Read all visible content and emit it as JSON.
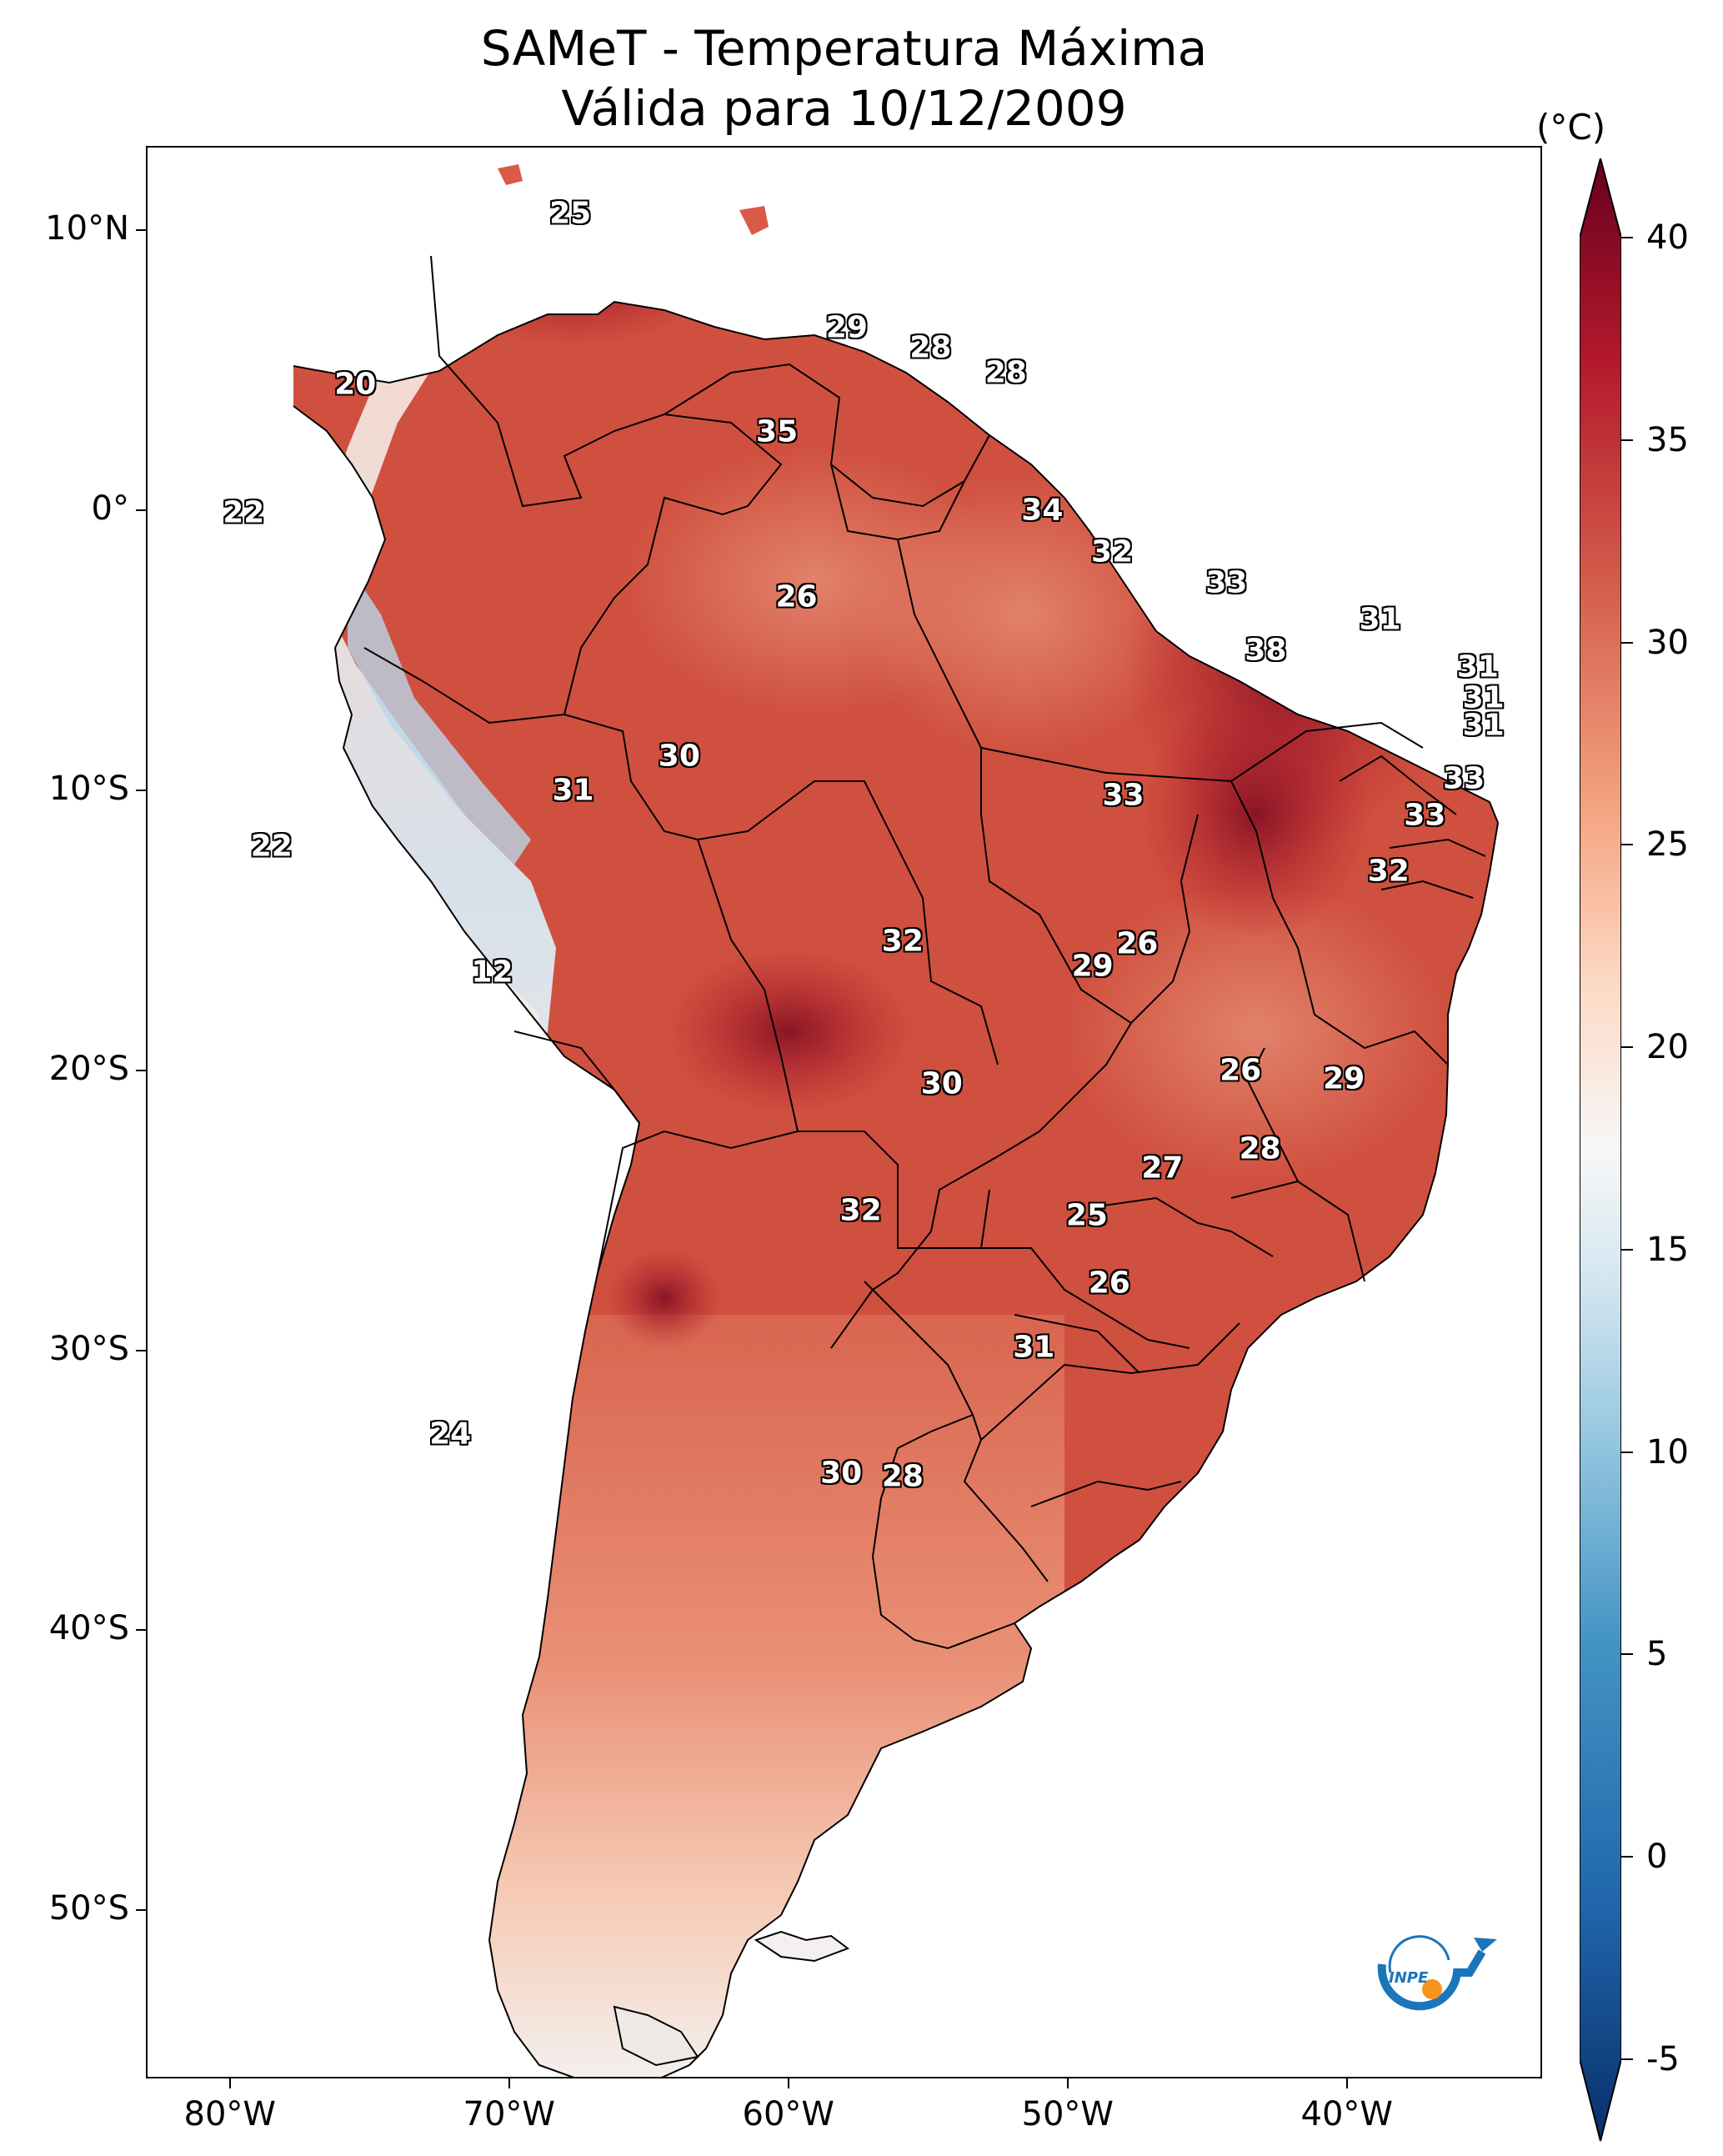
{
  "title": {
    "line1": "SAMeT - Temperatura Máxima",
    "line2": "Válida para 10/12/2009"
  },
  "axes": {
    "longitude_labels": [
      "80°W",
      "70°W",
      "60°W",
      "50°W",
      "40°W"
    ],
    "latitude_labels": [
      "10°N",
      "0°",
      "10°S",
      "20°S",
      "30°S",
      "40°S",
      "50°S"
    ],
    "longitude_values": [
      -80,
      -70,
      -60,
      -50,
      -40
    ],
    "latitude_values": [
      10,
      0,
      -10,
      -20,
      -30,
      -40,
      -50
    ],
    "lon_range": [
      -83,
      -33
    ],
    "lat_range": [
      -56,
      13
    ]
  },
  "colorbar": {
    "unit": "(°C)",
    "labels": [
      "40",
      "35",
      "30",
      "25",
      "20",
      "15",
      "10",
      "5",
      "0",
      "-5"
    ],
    "values": [
      40,
      35,
      30,
      25,
      20,
      15,
      10,
      5,
      0,
      -5
    ],
    "range": [
      -5,
      40
    ],
    "colors": [
      "#08306b",
      "#2166ac",
      "#4393c3",
      "#92c5de",
      "#d1e5f0",
      "#f7f7f7",
      "#fddbc7",
      "#f4a582",
      "#d6604d",
      "#b2182b",
      "#67001f"
    ]
  },
  "contour_labels": [
    {
      "text": "25",
      "lon": -67.8,
      "lat": 10.6
    },
    {
      "text": "29",
      "lon": -57.9,
      "lat": 6.5
    },
    {
      "text": "28",
      "lon": -54.9,
      "lat": 5.8
    },
    {
      "text": "28",
      "lon": -52.2,
      "lat": 4.9
    },
    {
      "text": "20",
      "lon": -75.5,
      "lat": 4.5
    },
    {
      "text": "35",
      "lon": -60.4,
      "lat": 2.8
    },
    {
      "text": "34",
      "lon": -50.9,
      "lat": 0.0
    },
    {
      "text": "22",
      "lon": -79.5,
      "lat": -0.1
    },
    {
      "text": "32",
      "lon": -48.4,
      "lat": -1.5
    },
    {
      "text": "33",
      "lon": -44.3,
      "lat": -2.6
    },
    {
      "text": "26",
      "lon": -59.7,
      "lat": -3.1
    },
    {
      "text": "31",
      "lon": -38.8,
      "lat": -3.9
    },
    {
      "text": "38",
      "lon": -42.9,
      "lat": -5.0
    },
    {
      "text": "31",
      "lon": -35.3,
      "lat": -5.6
    },
    {
      "text": "31",
      "lon": -35.1,
      "lat": -6.7
    },
    {
      "text": "31",
      "lon": -35.1,
      "lat": -7.7
    },
    {
      "text": "30",
      "lon": -63.9,
      "lat": -8.8
    },
    {
      "text": "33",
      "lon": -35.8,
      "lat": -9.6
    },
    {
      "text": "31",
      "lon": -67.7,
      "lat": -10.0
    },
    {
      "text": "33",
      "lon": -48.0,
      "lat": -10.2
    },
    {
      "text": "33",
      "lon": -37.2,
      "lat": -10.9
    },
    {
      "text": "22",
      "lon": -78.5,
      "lat": -12.0
    },
    {
      "text": "32",
      "lon": -38.5,
      "lat": -12.9
    },
    {
      "text": "26",
      "lon": -47.5,
      "lat": -15.5
    },
    {
      "text": "32",
      "lon": -55.9,
      "lat": -15.4
    },
    {
      "text": "29",
      "lon": -49.1,
      "lat": -16.3
    },
    {
      "text": "12",
      "lon": -70.6,
      "lat": -16.5
    },
    {
      "text": "26",
      "lon": -43.8,
      "lat": -20.0
    },
    {
      "text": "29",
      "lon": -40.1,
      "lat": -20.3
    },
    {
      "text": "30",
      "lon": -54.5,
      "lat": -20.5
    },
    {
      "text": "28",
      "lon": -43.1,
      "lat": -22.8
    },
    {
      "text": "27",
      "lon": -46.6,
      "lat": -23.5
    },
    {
      "text": "32",
      "lon": -57.4,
      "lat": -25.0
    },
    {
      "text": "25",
      "lon": -49.3,
      "lat": -25.2
    },
    {
      "text": "26",
      "lon": -48.5,
      "lat": -27.6
    },
    {
      "text": "31",
      "lon": -51.2,
      "lat": -29.9
    },
    {
      "text": "24",
      "lon": -72.1,
      "lat": -33.0
    },
    {
      "text": "30",
      "lon": -58.1,
      "lat": -34.4
    },
    {
      "text": "28",
      "lon": -55.9,
      "lat": -34.5
    }
  ],
  "logo": {
    "text": "INPE",
    "icon": "inpe-logo"
  }
}
